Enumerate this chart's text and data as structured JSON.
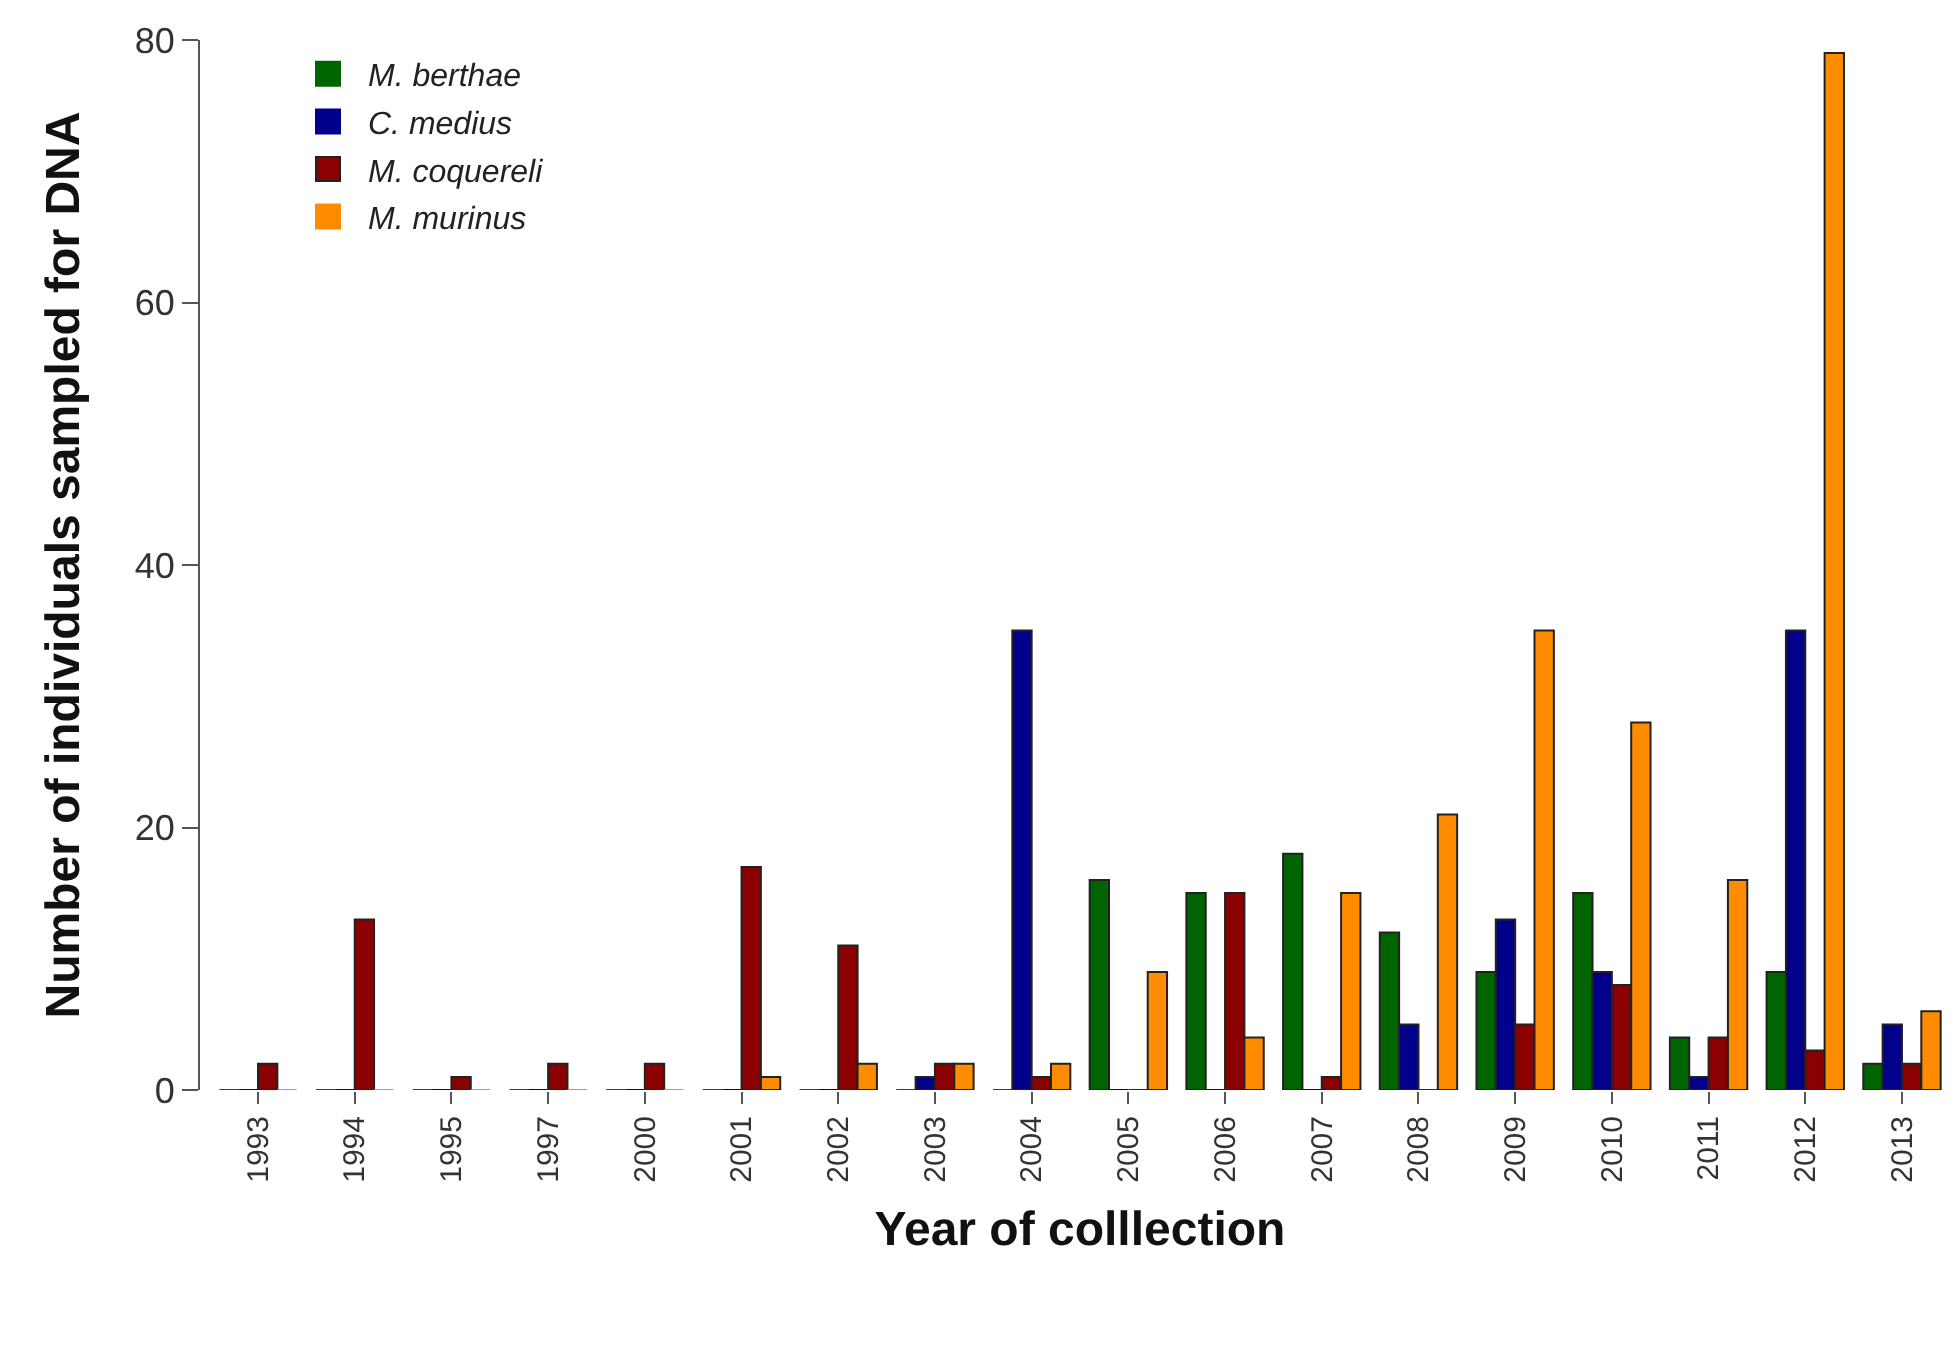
{
  "chart_data": {
    "type": "bar",
    "xlabel": "Year of colllection",
    "ylabel": "Number of individuals sampled for DNA",
    "categories": [
      "1993",
      "1994",
      "1995",
      "1997",
      "2000",
      "2001",
      "2002",
      "2003",
      "2004",
      "2005",
      "2006",
      "2007",
      "2008",
      "2009",
      "2010",
      "2011",
      "2012",
      "2013"
    ],
    "series": [
      {
        "name": "M. berthae",
        "color": "#006400",
        "values": [
          0,
          0,
          0,
          0,
          0,
          0,
          0,
          0,
          0,
          16,
          15,
          18,
          12,
          9,
          15,
          4,
          9,
          2
        ]
      },
      {
        "name": "C. medius",
        "color": "#00008b",
        "values": [
          0,
          0,
          0,
          0,
          0,
          0,
          0,
          1,
          35,
          0,
          0,
          0,
          5,
          13,
          9,
          1,
          35,
          5
        ]
      },
      {
        "name": "M. coquereli",
        "color": "#8b0000",
        "values": [
          2,
          13,
          1,
          2,
          2,
          17,
          11,
          2,
          1,
          0,
          15,
          1,
          0,
          5,
          8,
          4,
          3,
          2
        ]
      },
      {
        "name": "M. murinus",
        "color": "#ff8c00",
        "values": [
          0,
          0,
          0,
          0,
          0,
          1,
          2,
          2,
          2,
          9,
          4,
          15,
          21,
          35,
          28,
          16,
          79,
          6
        ]
      }
    ],
    "ylim": [
      0,
      80
    ],
    "yticks": [
      0,
      20,
      40,
      60,
      80
    ],
    "grid": false,
    "legend": "top left"
  }
}
